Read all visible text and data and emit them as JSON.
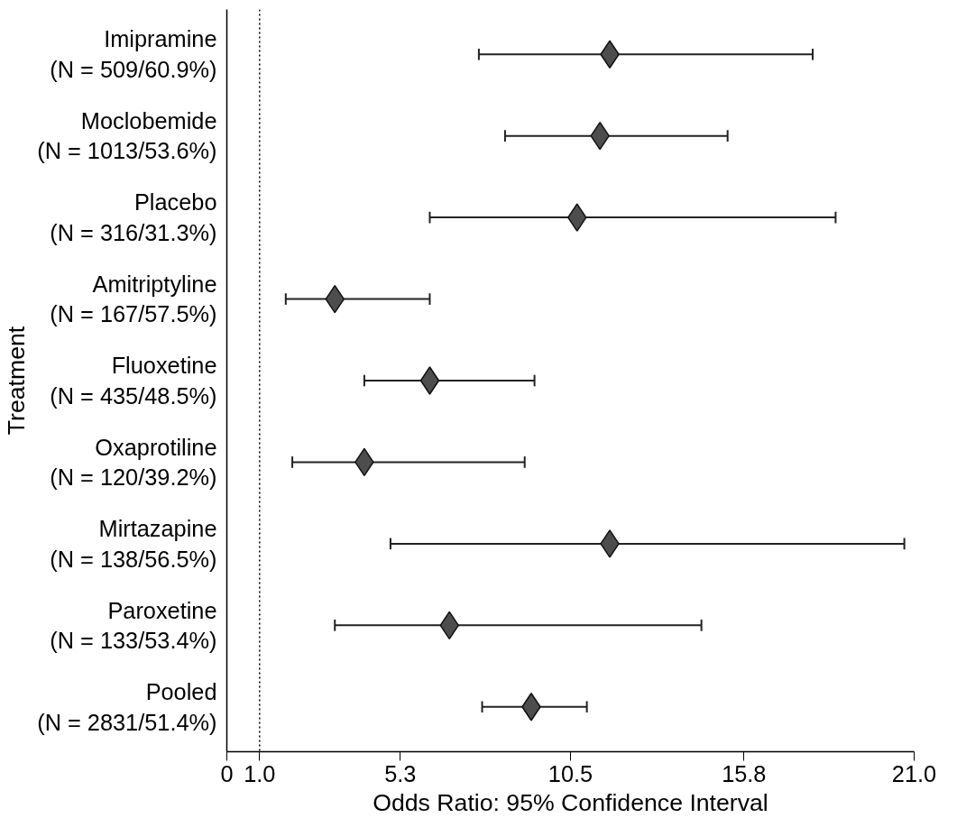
{
  "chart_data": {
    "type": "scatter",
    "xlabel": "Odds Ratio: 95% Confidence Interval",
    "ylabel": "Treatment",
    "categories": [
      "Imipramine\n(N = 509/60.9%)",
      "Moclobemide\n(N = 1013/53.6%)",
      "Placebo\n(N = 316/31.3%)",
      "Amitriptyline\n(N = 167/57.5%)",
      "Fluoxetine\n(N = 435/48.5%)",
      "Oxaprotiline\n(N = 120/39.2%)",
      "Mirtazapine\n(N = 138/56.5%)",
      "Paroxetine\n(N = 133/53.4%)",
      "Pooled\n(N = 2831/51.4%)"
    ],
    "orientation": "horizontal",
    "series": [
      {
        "color": "#4d4d4d",
        "values": [
          11.7,
          11.4,
          10.7,
          3.3,
          6.2,
          4.2,
          11.7,
          6.8,
          9.3
        ],
        "errors": [
          [
            7.7,
            17.9
          ],
          [
            8.5,
            15.3
          ],
          [
            6.2,
            18.6
          ],
          [
            1.8,
            6.2
          ],
          [
            4.2,
            9.4
          ],
          [
            2.0,
            9.1
          ],
          [
            5.0,
            20.7
          ],
          [
            3.3,
            14.5
          ],
          [
            7.8,
            11.0
          ]
        ]
      }
    ],
    "marker": "diamond",
    "xlim": [
      0,
      21.0
    ],
    "xticks": [
      0,
      {
        "value": 1.0,
        "label": "1.0"
      },
      5.3,
      10.5,
      15.8,
      {
        "value": 21.0,
        "label": "21.0"
      }
    ],
    "ref_lines": [
      {
        "axis": "x",
        "value": 1.0,
        "line_style": "dotted",
        "color": "#000000"
      }
    ],
    "grid": false
  }
}
